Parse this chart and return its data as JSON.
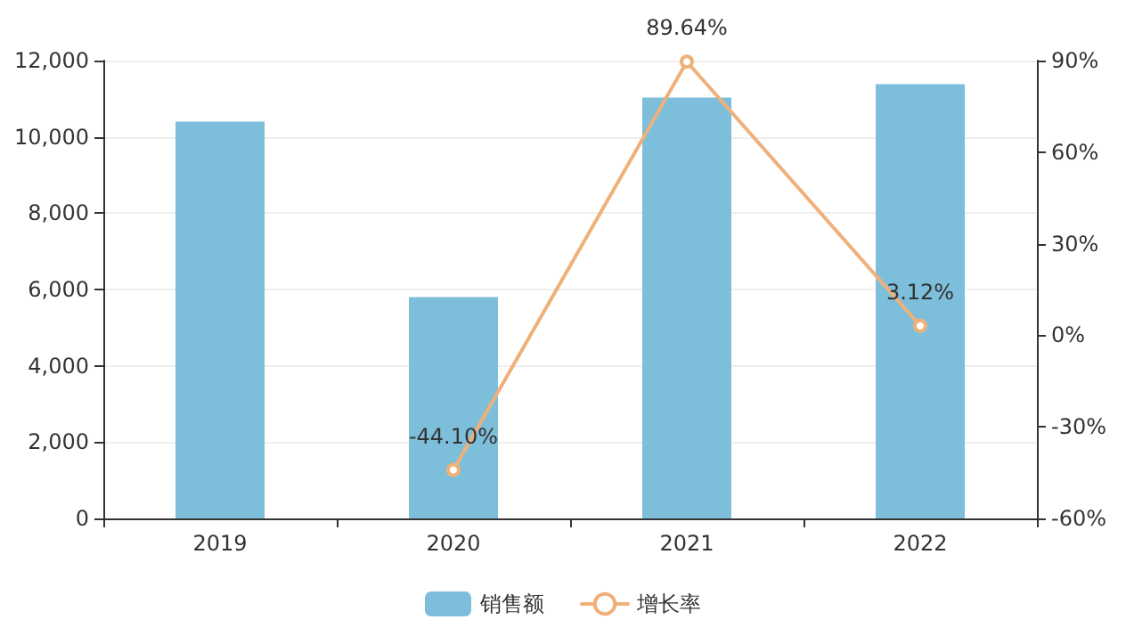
{
  "chart_data": {
    "type": "bar",
    "categories": [
      "2019",
      "2020",
      "2021",
      "2022"
    ],
    "series": [
      {
        "name": "销售额",
        "color": "#7dbfdb",
        "values": [
          10400,
          5800,
          11030,
          11380
        ]
      },
      {
        "name": "增长率",
        "type": "line",
        "axis": "y2",
        "color": "#efb07a",
        "values": [
          null,
          -44.1,
          89.64,
          3.12
        ],
        "value_labels": [
          null,
          "-44.10%",
          "89.64%",
          "3.12%"
        ]
      }
    ],
    "ylim": [
      0,
      12000
    ],
    "yticks": [
      0,
      {
        "value": 2000,
        "label": "2,000"
      },
      {
        "value": 4000,
        "label": "4,000"
      },
      {
        "value": 6000,
        "label": "6,000"
      },
      {
        "value": 8000,
        "label": "8,000"
      },
      {
        "value": 10000,
        "label": "10,000"
      },
      {
        "value": 12000,
        "label": "12,000"
      }
    ],
    "y2lim": [
      -60,
      90
    ],
    "y2ticks": [
      {
        "value": -60,
        "label": "-60%"
      },
      {
        "value": -30,
        "label": "-30%"
      },
      {
        "value": 0,
        "label": "0%"
      },
      {
        "value": 30,
        "label": "30%"
      },
      {
        "value": 60,
        "label": "60%"
      },
      {
        "value": 90,
        "label": "90%"
      }
    ],
    "grid": "y",
    "legend": "bottom",
    "marker": "circle",
    "line_style": "solid"
  }
}
